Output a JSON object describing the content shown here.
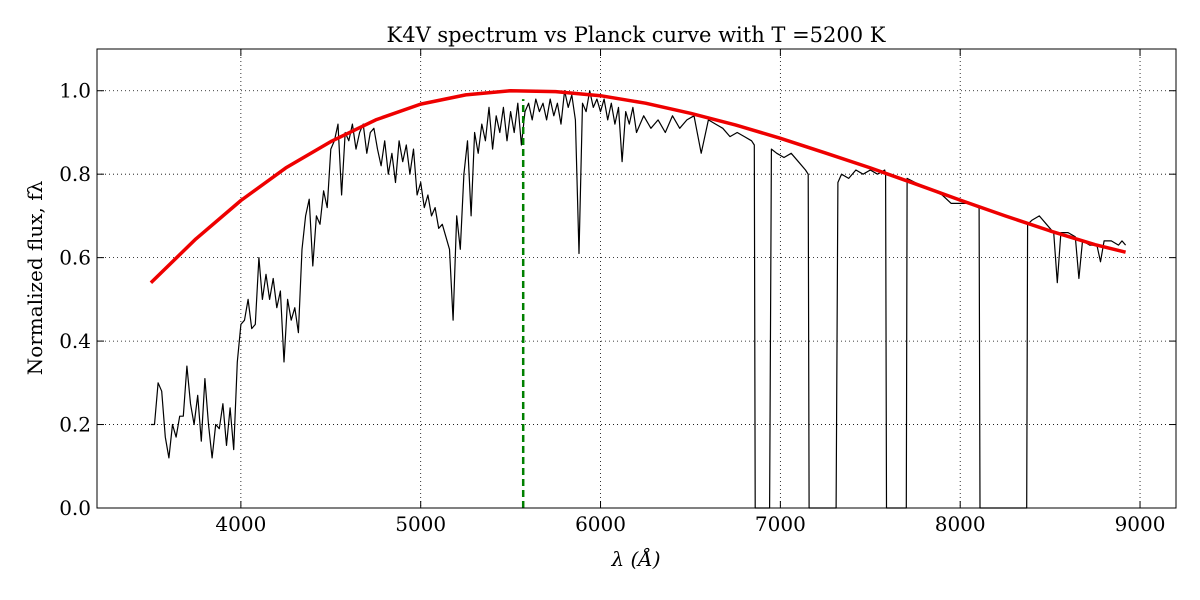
{
  "chart_data": {
    "type": "line",
    "title": "K4V spectrum vs Planck curve with T =5200 K",
    "xlabel": "λ (Å)",
    "ylabel": "Normalized flux,  fλ",
    "xlim": [
      3200,
      9200
    ],
    "ylim": [
      0,
      1.1
    ],
    "xticks": [
      4000,
      5000,
      6000,
      7000,
      8000,
      9000
    ],
    "yticks": [
      {
        "value": 0,
        "label": "0.0"
      },
      0.2,
      0.4,
      0.6,
      0.8,
      {
        "value": 1,
        "label": "1.0"
      }
    ],
    "grid": true,
    "series": [
      {
        "color": "#000000",
        "width": 1.2,
        "dashed": false,
        "x": [
          3500,
          3520,
          3540,
          3560,
          3580,
          3600,
          3620,
          3640,
          3660,
          3680,
          3700,
          3720,
          3740,
          3760,
          3780,
          3800,
          3820,
          3840,
          3860,
          3880,
          3900,
          3920,
          3940,
          3960,
          3980,
          4000,
          4020,
          4040,
          4060,
          4080,
          4100,
          4120,
          4140,
          4160,
          4180,
          4200,
          4220,
          4240,
          4260,
          4280,
          4300,
          4320,
          4340,
          4360,
          4380,
          4400,
          4420,
          4440,
          4460,
          4480,
          4500,
          4520,
          4540,
          4560,
          4580,
          4600,
          4620,
          4640,
          4660,
          4680,
          4700,
          4720,
          4740,
          4760,
          4780,
          4800,
          4820,
          4840,
          4860,
          4880,
          4900,
          4920,
          4940,
          4960,
          4980,
          5000,
          5020,
          5040,
          5060,
          5080,
          5100,
          5120,
          5140,
          5160,
          5180,
          5200,
          5220,
          5240,
          5260,
          5280,
          5300,
          5320,
          5340,
          5360,
          5380,
          5400,
          5420,
          5440,
          5460,
          5480,
          5500,
          5520,
          5540,
          5560,
          5580,
          5600,
          5620,
          5640,
          5660,
          5680,
          5700,
          5720,
          5740,
          5760,
          5780,
          5800,
          5820,
          5840,
          5860,
          5880,
          5900,
          5920,
          5940,
          5960,
          5980,
          6000,
          6020,
          6040,
          6060,
          6080,
          6100,
          6120,
          6140,
          6160,
          6180,
          6200,
          6240,
          6280,
          6320,
          6360,
          6400,
          6440,
          6480,
          6520,
          6560,
          6600,
          6640,
          6680,
          6720,
          6760,
          6800,
          6840,
          6855,
          6860,
          6940,
          6950,
          6980,
          7020,
          7060,
          7100,
          7140,
          7155,
          7160,
          7310,
          7320,
          7340,
          7380,
          7420,
          7460,
          7500,
          7540,
          7580,
          7585,
          7590,
          7700,
          7705,
          7750,
          7800,
          7850,
          7900,
          7950,
          8000,
          8050,
          8100,
          8105,
          8110,
          8370,
          8375,
          8400,
          8440,
          8480,
          8520,
          8540,
          8560,
          8600,
          8640,
          8660,
          8680,
          8720,
          8760,
          8780,
          8800,
          8840,
          8880,
          8900,
          8920
        ],
        "values": [
          0.2,
          0.2,
          0.3,
          0.28,
          0.17,
          0.12,
          0.2,
          0.17,
          0.22,
          0.22,
          0.34,
          0.25,
          0.2,
          0.27,
          0.16,
          0.31,
          0.2,
          0.12,
          0.2,
          0.19,
          0.25,
          0.15,
          0.24,
          0.14,
          0.35,
          0.44,
          0.45,
          0.5,
          0.43,
          0.44,
          0.6,
          0.5,
          0.56,
          0.5,
          0.55,
          0.48,
          0.52,
          0.35,
          0.5,
          0.45,
          0.48,
          0.42,
          0.62,
          0.7,
          0.74,
          0.58,
          0.7,
          0.68,
          0.76,
          0.72,
          0.86,
          0.88,
          0.92,
          0.75,
          0.9,
          0.88,
          0.92,
          0.86,
          0.9,
          0.92,
          0.85,
          0.9,
          0.91,
          0.86,
          0.82,
          0.88,
          0.8,
          0.85,
          0.78,
          0.88,
          0.83,
          0.87,
          0.8,
          0.86,
          0.75,
          0.78,
          0.72,
          0.75,
          0.7,
          0.72,
          0.67,
          0.68,
          0.65,
          0.62,
          0.45,
          0.7,
          0.62,
          0.8,
          0.88,
          0.7,
          0.9,
          0.85,
          0.92,
          0.88,
          0.96,
          0.86,
          0.94,
          0.9,
          0.96,
          0.88,
          0.95,
          0.9,
          0.97,
          0.87,
          0.95,
          0.97,
          0.93,
          0.98,
          0.95,
          0.97,
          0.93,
          0.98,
          0.94,
          0.97,
          0.92,
          1.0,
          0.96,
          0.99,
          0.93,
          0.61,
          0.97,
          0.95,
          1.0,
          0.96,
          0.98,
          0.95,
          0.98,
          0.93,
          0.97,
          0.92,
          0.96,
          0.83,
          0.95,
          0.92,
          0.96,
          0.9,
          0.94,
          0.91,
          0.93,
          0.9,
          0.94,
          0.91,
          0.93,
          0.94,
          0.85,
          0.93,
          0.92,
          0.91,
          0.89,
          0.9,
          0.89,
          0.88,
          0.87,
          0,
          0,
          0.86,
          0.85,
          0.84,
          0.85,
          0.83,
          0.81,
          0.8,
          0,
          0,
          0.78,
          0.8,
          0.79,
          0.81,
          0.8,
          0.81,
          0.8,
          0.81,
          0.8,
          0,
          0,
          0.79,
          0.78,
          0.77,
          0.76,
          0.75,
          0.73,
          0.73,
          0.73,
          0.72,
          0.72,
          0,
          0,
          0.68,
          0.69,
          0.7,
          0.68,
          0.66,
          0.54,
          0.66,
          0.66,
          0.65,
          0.55,
          0.64,
          0.63,
          0.63,
          0.59,
          0.64,
          0.64,
          0.63,
          0.64,
          0.63
        ]
      },
      {
        "color": "#ee0000",
        "width": 3.5,
        "dashed": false,
        "x": [
          3500,
          3750,
          4000,
          4250,
          4500,
          4750,
          5000,
          5250,
          5500,
          5750,
          6000,
          6250,
          6500,
          6750,
          7000,
          7250,
          7500,
          7750,
          8000,
          8250,
          8500,
          8750,
          8920
        ],
        "values": [
          0.54,
          0.645,
          0.737,
          0.815,
          0.878,
          0.93,
          0.968,
          0.99,
          1.0,
          0.998,
          0.988,
          0.97,
          0.946,
          0.918,
          0.886,
          0.851,
          0.815,
          0.777,
          0.738,
          0.7,
          0.664,
          0.631,
          0.613
        ]
      },
      {
        "color": "#008000",
        "width": 2.5,
        "dashed": true,
        "x": [
          5570,
          5570
        ],
        "values": [
          0,
          0.98
        ]
      }
    ]
  }
}
